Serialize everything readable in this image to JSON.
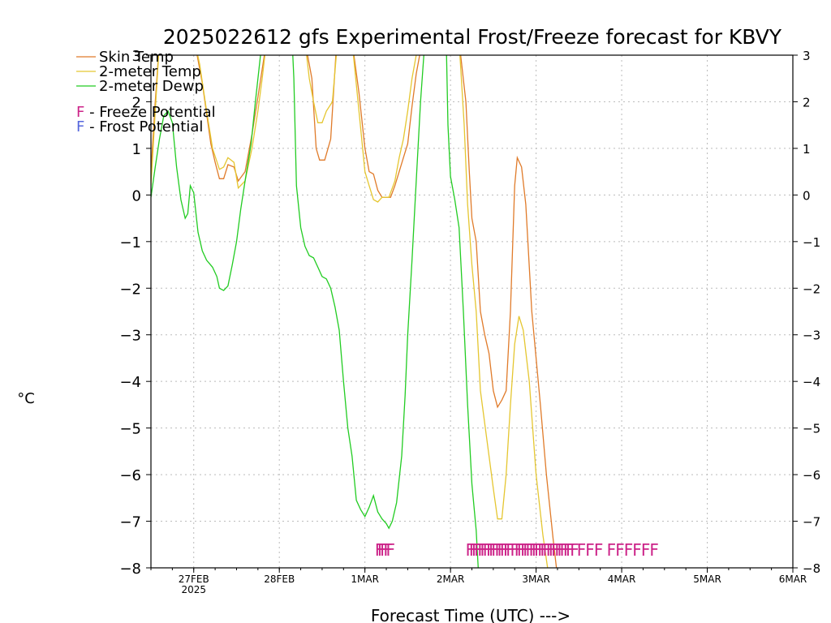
{
  "chart_data": {
    "type": "line",
    "title": "2025022612 gfs Experimental Frost/Freeze forecast for KBVY",
    "ylabel": "°C",
    "xlabel": "Forecast Time (UTC) --->",
    "ylim": [
      -8,
      3
    ],
    "xlim": [
      0,
      7.5
    ],
    "yticks": [
      3,
      2,
      1,
      0,
      -1,
      -2,
      -3,
      -4,
      -5,
      -6,
      -7,
      -8
    ],
    "ytick_labels": [
      "3",
      "2",
      "1",
      "0",
      "−1",
      "−2",
      "−3",
      "−4",
      "−5",
      "−6",
      "−7",
      "−8"
    ],
    "xticks": [
      {
        "x": 0.5,
        "label": "27FEB",
        "sub": "2025"
      },
      {
        "x": 1.5,
        "label": "28FEB",
        "sub": ""
      },
      {
        "x": 2.5,
        "label": "1MAR",
        "sub": ""
      },
      {
        "x": 3.5,
        "label": "2MAR",
        "sub": ""
      },
      {
        "x": 4.5,
        "label": "3MAR",
        "sub": ""
      },
      {
        "x": 5.5,
        "label": "4MAR",
        "sub": ""
      },
      {
        "x": 6.5,
        "label": "5MAR",
        "sub": ""
      },
      {
        "x": 7.5,
        "label": "6MAR",
        "sub": ""
      }
    ],
    "grid": true,
    "legend": [
      {
        "label": "Skin Temp",
        "color": "#e07b2a"
      },
      {
        "label": "2-meter Temp",
        "color": "#e5c630"
      },
      {
        "label": "2-meter Dewp",
        "color": "#22cc22"
      }
    ],
    "potential_legend": [
      {
        "letter": "F",
        "text": " - Freeze Potential",
        "color": "#cc2288"
      },
      {
        "letter": "F",
        "text": " - Frost Potential",
        "color": "#5566dd"
      }
    ],
    "series": [
      {
        "name": "Skin Temp",
        "color": "#e07b2a",
        "points": [
          [
            0,
            0.5
          ],
          [
            0.05,
            2.0
          ],
          [
            0.1,
            3.3
          ],
          [
            0.5,
            3.4
          ],
          [
            0.6,
            2.4
          ],
          [
            0.7,
            1.1
          ],
          [
            0.75,
            0.7
          ],
          [
            0.8,
            0.35
          ],
          [
            0.85,
            0.35
          ],
          [
            0.9,
            0.65
          ],
          [
            0.97,
            0.6
          ],
          [
            1.02,
            0.3
          ],
          [
            1.1,
            0.5
          ],
          [
            1.18,
            1.3
          ],
          [
            1.25,
            2.1
          ],
          [
            1.3,
            2.7
          ],
          [
            1.35,
            3.3
          ],
          [
            1.8,
            3.3
          ],
          [
            1.88,
            2.5
          ],
          [
            1.93,
            1.0
          ],
          [
            1.97,
            0.75
          ],
          [
            2.03,
            0.75
          ],
          [
            2.1,
            1.2
          ],
          [
            2.17,
            3.3
          ],
          [
            2.35,
            3.3
          ],
          [
            2.43,
            2.2
          ],
          [
            2.5,
            1.0
          ],
          [
            2.55,
            0.5
          ],
          [
            2.6,
            0.45
          ],
          [
            2.65,
            0.1
          ],
          [
            2.7,
            -0.05
          ],
          [
            2.75,
            -0.05
          ],
          [
            2.8,
            -0.05
          ],
          [
            2.85,
            0.2
          ],
          [
            2.9,
            0.5
          ],
          [
            2.95,
            0.8
          ],
          [
            3.0,
            1.1
          ],
          [
            3.05,
            1.9
          ],
          [
            3.1,
            2.6
          ],
          [
            3.17,
            3.3
          ],
          [
            3.5,
            3.3
          ],
          [
            3.6,
            3.3
          ],
          [
            3.68,
            2.0
          ],
          [
            3.72,
            0.5
          ],
          [
            3.75,
            -0.5
          ],
          [
            3.8,
            -1.0
          ],
          [
            3.85,
            -2.5
          ],
          [
            3.9,
            -3.0
          ],
          [
            3.95,
            -3.4
          ],
          [
            4.0,
            -4.2
          ],
          [
            4.05,
            -4.55
          ],
          [
            4.1,
            -4.4
          ],
          [
            4.15,
            -4.2
          ],
          [
            4.2,
            -2.5
          ],
          [
            4.25,
            0.2
          ],
          [
            4.28,
            0.8
          ],
          [
            4.33,
            0.6
          ],
          [
            4.38,
            -0.2
          ],
          [
            4.45,
            -2.5
          ],
          [
            4.55,
            -4.5
          ],
          [
            4.62,
            -6.0
          ],
          [
            4.7,
            -7.4
          ],
          [
            4.75,
            -8.2
          ]
        ]
      },
      {
        "name": "2-meter Temp",
        "color": "#e5c630",
        "points": [
          [
            0,
            0.2
          ],
          [
            0.05,
            1.8
          ],
          [
            0.1,
            3.3
          ],
          [
            0.5,
            3.4
          ],
          [
            0.57,
            2.8
          ],
          [
            0.65,
            1.8
          ],
          [
            0.72,
            1.0
          ],
          [
            0.8,
            0.55
          ],
          [
            0.85,
            0.6
          ],
          [
            0.9,
            0.8
          ],
          [
            0.97,
            0.7
          ],
          [
            1.02,
            0.15
          ],
          [
            1.1,
            0.3
          ],
          [
            1.18,
            1.0
          ],
          [
            1.25,
            1.8
          ],
          [
            1.3,
            2.5
          ],
          [
            1.35,
            3.3
          ],
          [
            1.8,
            3.3
          ],
          [
            1.85,
            2.5
          ],
          [
            1.9,
            2.0
          ],
          [
            1.95,
            1.55
          ],
          [
            2.0,
            1.55
          ],
          [
            2.05,
            1.8
          ],
          [
            2.12,
            2.0
          ],
          [
            2.18,
            3.3
          ],
          [
            2.35,
            3.3
          ],
          [
            2.42,
            2.0
          ],
          [
            2.5,
            0.5
          ],
          [
            2.55,
            0.2
          ],
          [
            2.6,
            -0.1
          ],
          [
            2.65,
            -0.15
          ],
          [
            2.7,
            -0.05
          ],
          [
            2.78,
            -0.05
          ],
          [
            2.85,
            0.3
          ],
          [
            2.9,
            0.8
          ],
          [
            2.95,
            1.2
          ],
          [
            3.0,
            1.8
          ],
          [
            3.05,
            2.5
          ],
          [
            3.1,
            3.0
          ],
          [
            3.17,
            3.3
          ],
          [
            3.5,
            3.3
          ],
          [
            3.6,
            3.3
          ],
          [
            3.66,
            1.5
          ],
          [
            3.7,
            -0.2
          ],
          [
            3.75,
            -1.5
          ],
          [
            3.8,
            -2.5
          ],
          [
            3.85,
            -4.2
          ],
          [
            3.9,
            -4.9
          ],
          [
            3.95,
            -5.6
          ],
          [
            4.0,
            -6.3
          ],
          [
            4.05,
            -6.95
          ],
          [
            4.1,
            -6.95
          ],
          [
            4.15,
            -6.0
          ],
          [
            4.2,
            -4.5
          ],
          [
            4.25,
            -3.2
          ],
          [
            4.3,
            -2.6
          ],
          [
            4.35,
            -2.9
          ],
          [
            4.42,
            -4.0
          ],
          [
            4.5,
            -6.0
          ],
          [
            4.58,
            -7.3
          ],
          [
            4.65,
            -8.2
          ]
        ]
      },
      {
        "name": "2-meter Dewp",
        "color": "#22cc22",
        "points": [
          [
            0,
            -0.05
          ],
          [
            0.05,
            0.6
          ],
          [
            0.1,
            1.2
          ],
          [
            0.15,
            1.7
          ],
          [
            0.2,
            1.8
          ],
          [
            0.25,
            1.55
          ],
          [
            0.3,
            0.6
          ],
          [
            0.35,
            -0.1
          ],
          [
            0.4,
            -0.5
          ],
          [
            0.43,
            -0.4
          ],
          [
            0.46,
            0.2
          ],
          [
            0.5,
            0.05
          ],
          [
            0.55,
            -0.8
          ],
          [
            0.6,
            -1.2
          ],
          [
            0.65,
            -1.4
          ],
          [
            0.72,
            -1.55
          ],
          [
            0.77,
            -1.75
          ],
          [
            0.8,
            -2.0
          ],
          [
            0.85,
            -2.05
          ],
          [
            0.9,
            -1.95
          ],
          [
            0.95,
            -1.5
          ],
          [
            1.0,
            -1.0
          ],
          [
            1.05,
            -0.3
          ],
          [
            1.1,
            0.3
          ],
          [
            1.17,
            1.1
          ],
          [
            1.22,
            2.0
          ],
          [
            1.28,
            3.0
          ],
          [
            1.32,
            3.3
          ],
          [
            1.65,
            3.3
          ],
          [
            1.67,
            2.5
          ],
          [
            1.7,
            0.2
          ],
          [
            1.75,
            -0.7
          ],
          [
            1.8,
            -1.1
          ],
          [
            1.85,
            -1.3
          ],
          [
            1.9,
            -1.35
          ],
          [
            1.95,
            -1.55
          ],
          [
            2.0,
            -1.75
          ],
          [
            2.05,
            -1.8
          ],
          [
            2.1,
            -2.0
          ],
          [
            2.15,
            -2.4
          ],
          [
            2.2,
            -2.9
          ],
          [
            2.25,
            -4.0
          ],
          [
            2.3,
            -5.0
          ],
          [
            2.35,
            -5.6
          ],
          [
            2.4,
            -6.55
          ],
          [
            2.45,
            -6.75
          ],
          [
            2.5,
            -6.9
          ],
          [
            2.55,
            -6.7
          ],
          [
            2.6,
            -6.45
          ],
          [
            2.65,
            -6.8
          ],
          [
            2.7,
            -6.95
          ],
          [
            2.75,
            -7.05
          ],
          [
            2.78,
            -7.15
          ],
          [
            2.82,
            -7.0
          ],
          [
            2.87,
            -6.6
          ],
          [
            2.93,
            -5.6
          ],
          [
            2.97,
            -4.3
          ],
          [
            3.0,
            -3.0
          ],
          [
            3.05,
            -1.4
          ],
          [
            3.1,
            0.3
          ],
          [
            3.15,
            2.0
          ],
          [
            3.2,
            3.3
          ],
          [
            3.45,
            3.3
          ],
          [
            3.47,
            1.5
          ],
          [
            3.5,
            0.4
          ],
          [
            3.55,
            -0.1
          ],
          [
            3.6,
            -0.7
          ],
          [
            3.65,
            -2.5
          ],
          [
            3.7,
            -4.5
          ],
          [
            3.75,
            -6.2
          ],
          [
            3.8,
            -7.2
          ],
          [
            3.83,
            -8.2
          ]
        ]
      }
    ],
    "freeze_marks": {
      "color": "#cc2288",
      "y": -7.6,
      "x": [
        2.67,
        2.7,
        2.73,
        2.77,
        2.8,
        3.73,
        3.77,
        3.8,
        3.83,
        3.87,
        3.9,
        3.93,
        3.97,
        4.0,
        4.03,
        4.07,
        4.1,
        4.13,
        4.17,
        4.2,
        4.25,
        4.3,
        4.33,
        4.37,
        4.4,
        4.43,
        4.47,
        4.5,
        4.53,
        4.57,
        4.6,
        4.63,
        4.67,
        4.7,
        4.73,
        4.77,
        4.8,
        4.83,
        4.87,
        4.9,
        4.95,
        5.03,
        5.13,
        5.23,
        5.38,
        5.48,
        5.58,
        5.68,
        5.78,
        5.88
      ]
    }
  }
}
